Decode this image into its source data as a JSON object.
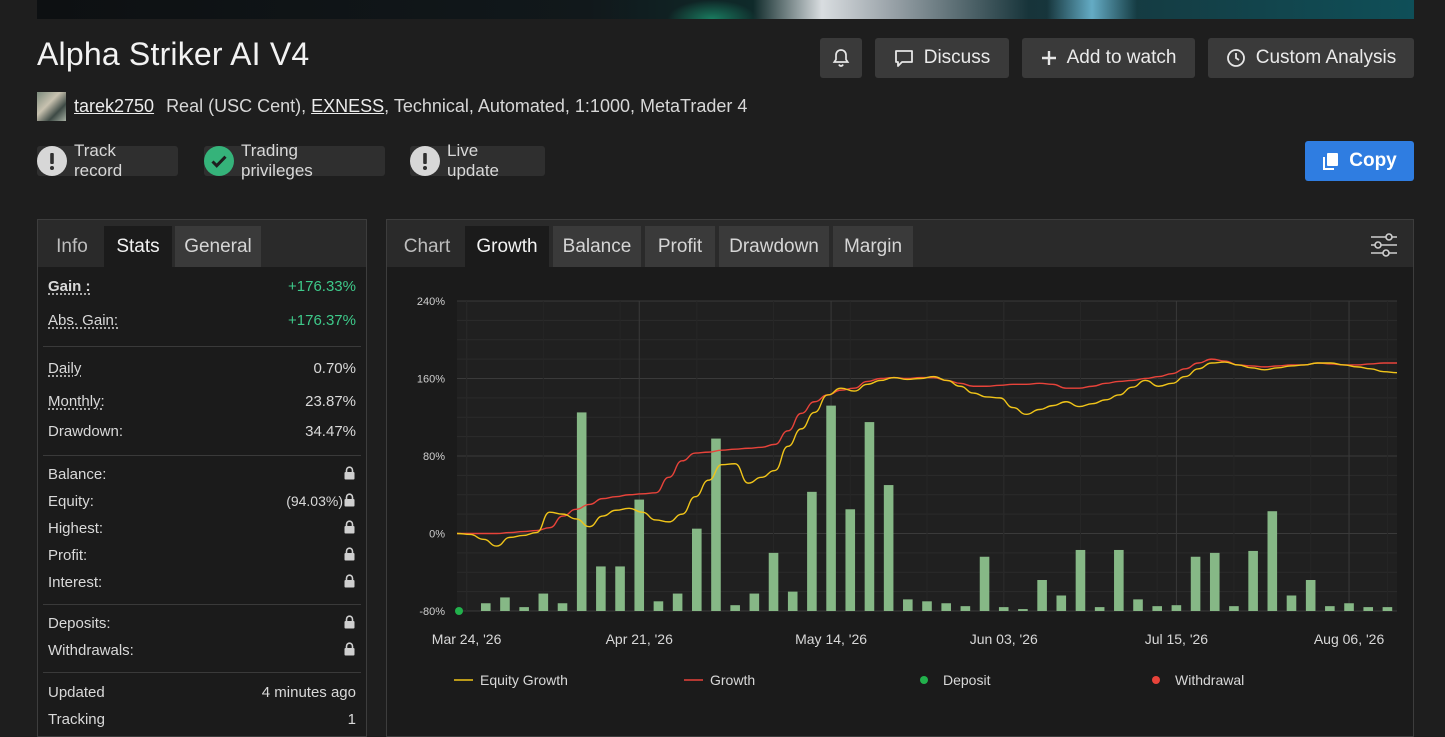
{
  "header": {
    "title": "Alpha Striker AI V4",
    "buttons": {
      "discuss": "Discuss",
      "add_watch": "Add to watch",
      "custom_analysis": "Custom Analysis",
      "copy": "Copy"
    },
    "username": "tarek2750",
    "account_prefix": "Real (USC Cent), ",
    "broker": "EXNESS",
    "account_suffix": ", Technical, Automated, 1:1000, MetaTrader 4",
    "badges": [
      {
        "label": "Track record",
        "status": "warning"
      },
      {
        "label": "Trading privileges",
        "status": "ok"
      },
      {
        "label": "Live update",
        "status": "warning"
      }
    ]
  },
  "left_panel": {
    "tabs": [
      "Info",
      "Stats",
      "General"
    ],
    "active_tab": "Stats",
    "stats": {
      "gain_label": "Gain :",
      "gain_value": "+176.33%",
      "abs_gain_label": "Abs. Gain:",
      "abs_gain_value": "+176.37%",
      "daily_label": "Daily",
      "daily_value": "0.70%",
      "monthly_label": "Monthly:",
      "monthly_value": "23.87%",
      "drawdown_label": "Drawdown:",
      "drawdown_value": "34.47%",
      "balance_label": "Balance:",
      "equity_label": "Equity:",
      "equity_value": "(94.03%)",
      "highest_label": "Highest:",
      "profit_label": "Profit:",
      "interest_label": "Interest:",
      "deposits_label": "Deposits:",
      "withdrawals_label": "Withdrawals:",
      "updated_label": "Updated",
      "updated_value": "4 minutes ago",
      "tracking_label": "Tracking",
      "tracking_value": "1"
    }
  },
  "right_panel": {
    "tabs": [
      "Chart",
      "Growth",
      "Balance",
      "Profit",
      "Drawdown",
      "Margin"
    ],
    "active_tab": "Growth"
  },
  "colors": {
    "equity": "#f0c419",
    "growth": "#e8433a",
    "bars": "#86b886",
    "deposit": "#22b14c",
    "withdrawal": "#e8433a",
    "accent": "#2f7de1"
  },
  "chart_data": {
    "type": "line",
    "ylim": [
      -80,
      240
    ],
    "y_ticks": [
      "240%",
      "160%",
      "80%",
      "0%",
      "-80%"
    ],
    "x_tick_labels": [
      "Mar 24, '26",
      "Apr 21, '26",
      "May 14, '26",
      "Jun 03, '26",
      "Jul 15, '26",
      "Aug 06, '26"
    ],
    "x_tick_index": [
      0,
      9,
      19,
      28,
      37,
      46
    ],
    "legend": [
      "Equity Growth",
      "Growth",
      "Deposit",
      "Withdrawal"
    ],
    "legend_position": "bottom",
    "grid": true,
    "series": [
      {
        "name": "Equity Growth",
        "values": [
          0,
          -1,
          -6,
          -13,
          -4,
          -2,
          1,
          22,
          20,
          15,
          7,
          18,
          24,
          26,
          22,
          14,
          12,
          20,
          38,
          55,
          71,
          72,
          52,
          58,
          65,
          90,
          108,
          125,
          143,
          150,
          147,
          154,
          158,
          161,
          159,
          160,
          162,
          158,
          152,
          145,
          141,
          140,
          130,
          123,
          128,
          132,
          136,
          131,
          134,
          138,
          143,
          151,
          158,
          152,
          155,
          162,
          170,
          176,
          177,
          174,
          171,
          169,
          171,
          173,
          174,
          176,
          176,
          174,
          172,
          170,
          167,
          166
        ]
      },
      {
        "name": "Growth",
        "values": [
          0,
          0,
          0,
          0,
          1,
          2,
          3,
          6,
          18,
          25,
          30,
          36,
          38,
          40,
          41,
          42,
          58,
          75,
          83,
          84,
          86,
          87,
          88,
          89,
          92,
          106,
          124,
          136,
          143,
          148,
          150,
          157,
          160,
          161,
          160,
          161,
          161,
          158,
          155,
          152,
          152,
          153,
          154,
          154,
          155,
          154,
          150,
          150,
          152,
          155,
          157,
          158,
          160,
          162,
          165,
          170,
          176,
          180,
          178,
          174,
          173,
          172,
          173,
          174,
          174,
          176,
          175,
          174,
          174,
          175,
          176,
          176
        ]
      },
      {
        "name": "bars",
        "values": [
          -80,
          -72,
          -66,
          -76,
          -62,
          -72,
          125,
          -34,
          -34,
          35,
          -70,
          -62,
          5,
          98,
          -74,
          -62,
          -20,
          -60,
          43,
          132,
          25,
          115,
          50,
          -68,
          -70,
          -72,
          -75,
          -24,
          -76,
          -78,
          -48,
          -64,
          -17,
          -76,
          -17,
          -68,
          -75,
          -74,
          -24,
          -20,
          -75,
          -18,
          23,
          -64,
          -48,
          -75,
          -72,
          -76,
          -76
        ]
      },
      {
        "name": "Deposit",
        "values": [
          -80
        ]
      }
    ]
  }
}
